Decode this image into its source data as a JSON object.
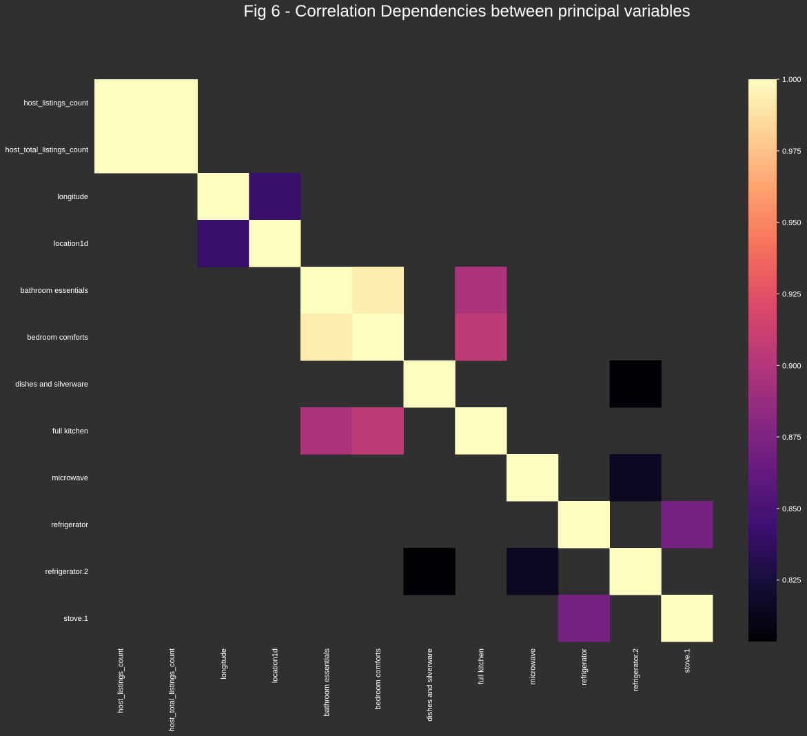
{
  "chart_data": {
    "type": "heatmap",
    "title": "Fig 6 - Correlation Dependencies between principal variables",
    "xlabel": "",
    "ylabel": "",
    "row_labels": [
      "host_listings_count",
      "host_total_listings_count",
      "longitude",
      "location1d",
      "bathroom essentials",
      "bedroom comforts",
      "dishes and silverware",
      "full kitchen",
      "microwave",
      "refrigerator",
      "refrigerator.2",
      "stove.1"
    ],
    "col_labels": [
      "host_listings_count",
      "host_total_listings_count",
      "longitude",
      "location1d",
      "bathroom essentials",
      "bedroom comforts",
      "dishes and silverware",
      "full kitchen",
      "microwave",
      "refrigerator",
      "refrigerator.2",
      "stove.1"
    ],
    "values": [
      [
        1.0,
        1.0,
        null,
        null,
        null,
        null,
        null,
        null,
        null,
        null,
        null,
        null
      ],
      [
        1.0,
        1.0,
        null,
        null,
        null,
        null,
        null,
        null,
        null,
        null,
        null,
        null
      ],
      [
        null,
        null,
        1.0,
        0.842,
        null,
        null,
        null,
        null,
        null,
        null,
        null,
        null
      ],
      [
        null,
        null,
        0.842,
        1.0,
        null,
        null,
        null,
        null,
        null,
        null,
        null,
        null
      ],
      [
        null,
        null,
        null,
        null,
        1.0,
        0.993,
        null,
        0.897,
        null,
        null,
        null,
        null
      ],
      [
        null,
        null,
        null,
        null,
        0.993,
        1.0,
        null,
        0.906,
        null,
        null,
        null,
        null
      ],
      [
        null,
        null,
        null,
        null,
        null,
        null,
        1.0,
        null,
        null,
        null,
        0.804,
        null
      ],
      [
        null,
        null,
        null,
        null,
        0.897,
        0.906,
        null,
        1.0,
        null,
        null,
        null,
        null
      ],
      [
        null,
        null,
        null,
        null,
        null,
        null,
        null,
        null,
        1.0,
        null,
        0.815,
        null
      ],
      [
        null,
        null,
        null,
        null,
        null,
        null,
        null,
        null,
        null,
        1.0,
        null,
        0.871
      ],
      [
        null,
        null,
        null,
        null,
        null,
        null,
        0.804,
        null,
        0.815,
        null,
        1.0,
        null
      ],
      [
        null,
        null,
        null,
        null,
        null,
        null,
        null,
        null,
        null,
        0.871,
        null,
        1.0
      ]
    ],
    "colormap": "magma",
    "vmin": 0.8035,
    "vmax": 1.0,
    "colorbar_ticks": [
      0.825,
      0.85,
      0.875,
      0.9,
      0.925,
      0.95,
      0.975,
      1.0
    ],
    "colorbar_tick_labels": [
      "0.825",
      "0.850",
      "0.875",
      "0.900",
      "0.925",
      "0.950",
      "0.975",
      "1.000"
    ]
  }
}
